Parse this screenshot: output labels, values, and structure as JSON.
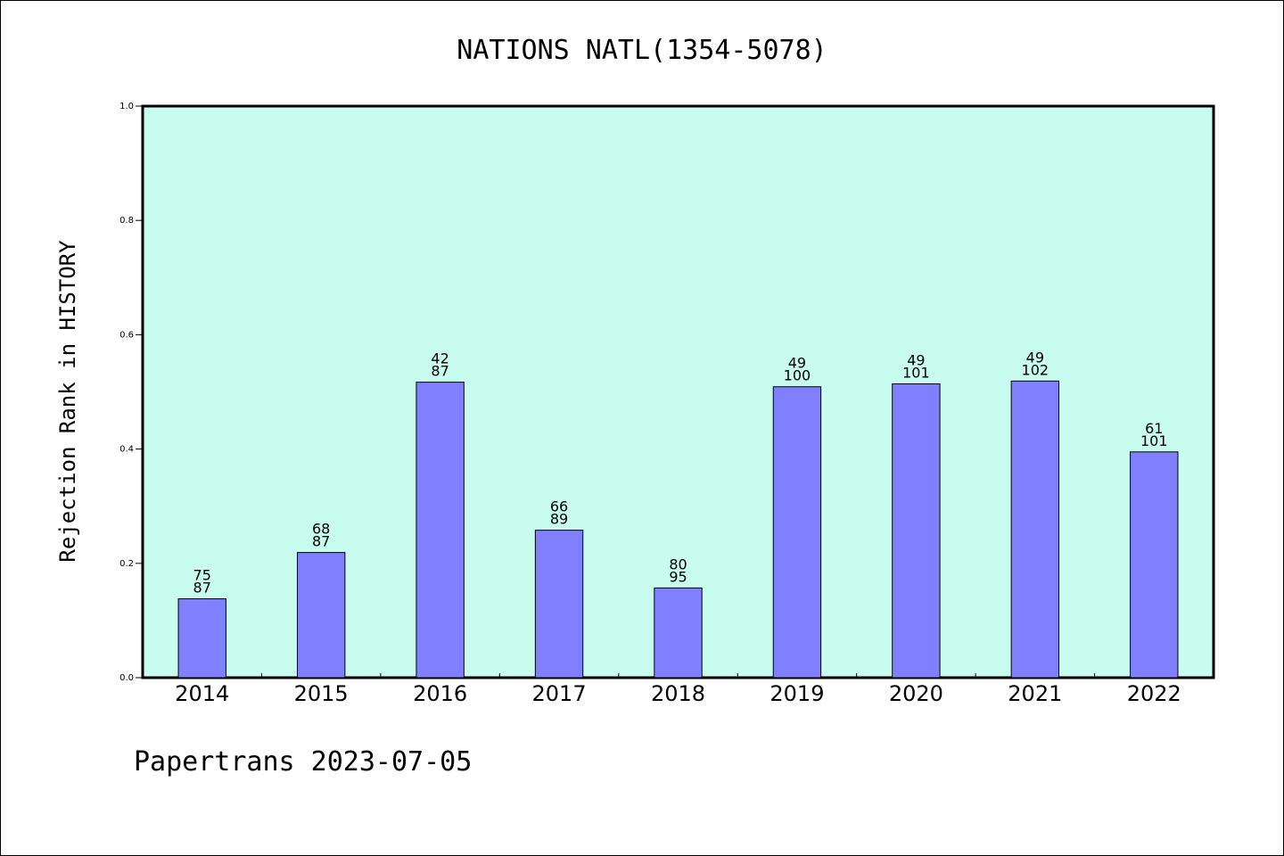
{
  "chart_data": {
    "type": "bar",
    "title": "NATIONS NATL(1354-5078)",
    "xlabel": "",
    "ylabel": "Rejection Rank in HISTORY",
    "ylim": [
      0,
      1.0
    ],
    "yticks": [
      "0.0",
      "0.2",
      "0.4",
      "0.6",
      "0.8",
      "1.0"
    ],
    "categories": [
      "2014",
      "2015",
      "2016",
      "2017",
      "2018",
      "2019",
      "2020",
      "2021",
      "2022"
    ],
    "values": [
      0.138,
      0.219,
      0.517,
      0.258,
      0.157,
      0.509,
      0.514,
      0.519,
      0.395
    ],
    "annotations": [
      {
        "top": "75",
        "bottom": "87"
      },
      {
        "top": "68",
        "bottom": "87"
      },
      {
        "top": "42",
        "bottom": "87"
      },
      {
        "top": "66",
        "bottom": "89"
      },
      {
        "top": "80",
        "bottom": "95"
      },
      {
        "top": "49",
        "bottom": "100"
      },
      {
        "top": "49",
        "bottom": "101"
      },
      {
        "top": "49",
        "bottom": "102"
      },
      {
        "top": "61",
        "bottom": "101"
      }
    ],
    "grid": false,
    "legend": "none",
    "colors": {
      "plot_background": "#c8fcee",
      "bar_fill": "#8080ff",
      "bar_stroke": "#000000"
    }
  },
  "footer": {
    "text": "Papertrans 2023-07-05"
  }
}
